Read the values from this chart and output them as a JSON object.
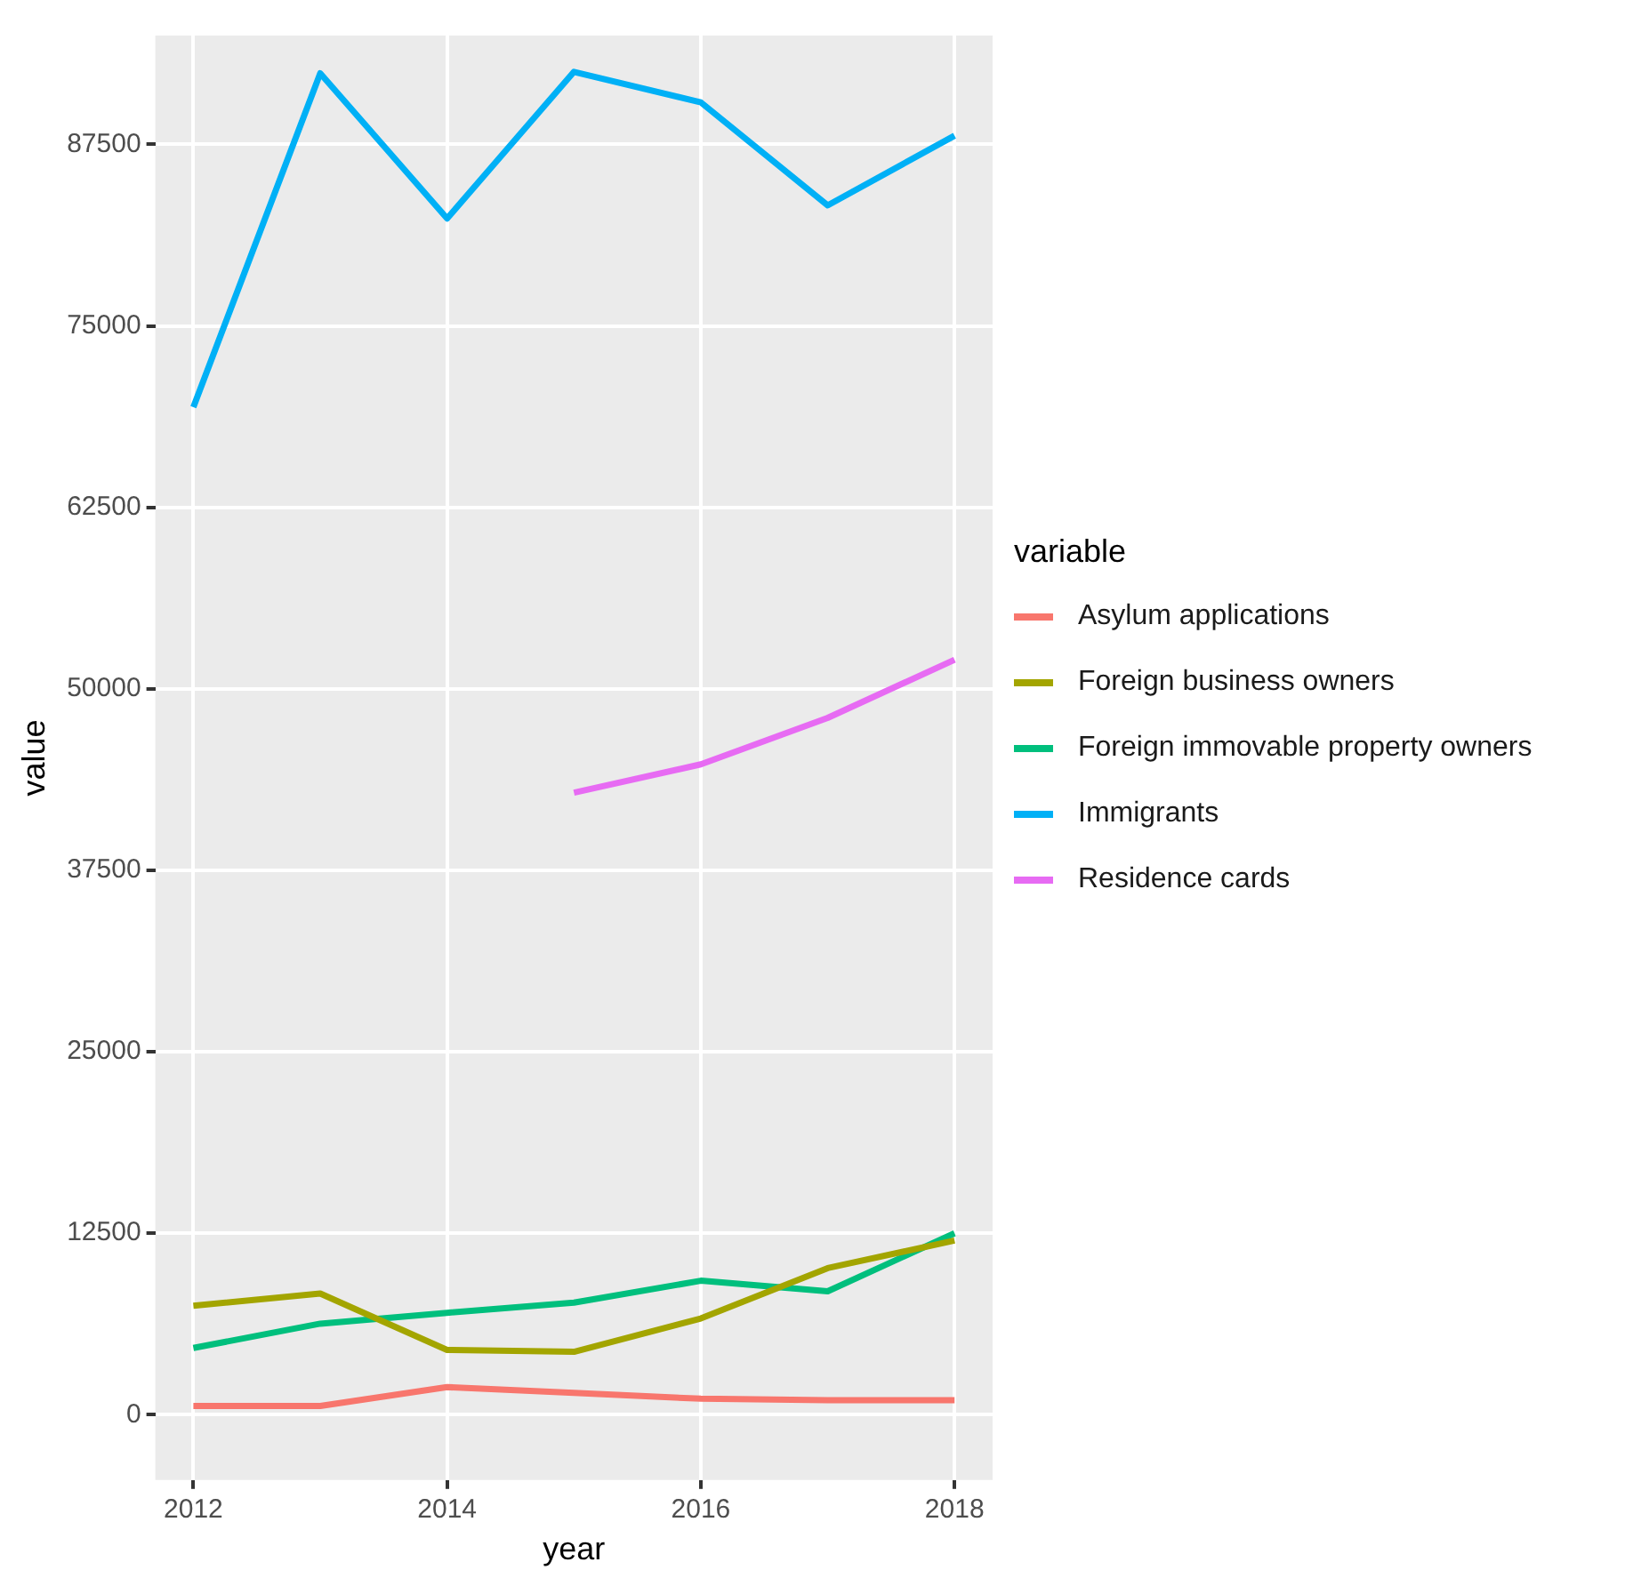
{
  "chart_data": {
    "type": "line",
    "xlabel": "year",
    "ylabel": "value",
    "legend_title": "variable",
    "legend": "right",
    "grid": true,
    "marker": "none",
    "line_style": "solid",
    "x": [
      2012,
      2013,
      2014,
      2015,
      2016,
      2017,
      2018
    ],
    "xlim": [
      2011.7,
      2018.3
    ],
    "xticks": [
      2012,
      2014,
      2016,
      2018
    ],
    "ylim": [
      -4500,
      95000
    ],
    "yticks": [
      0,
      12500,
      25000,
      37500,
      50000,
      62500,
      75000,
      87500
    ],
    "series": [
      {
        "name": "Asylum applications",
        "color": "#f8766d",
        "values": [
          600,
          600,
          1900,
          1500,
          1100,
          1000,
          1000
        ]
      },
      {
        "name": "Foreign business owners",
        "color": "#a3a500",
        "values": [
          7500,
          8350,
          4460,
          4330,
          6630,
          10100,
          12000
        ]
      },
      {
        "name": "Foreign immovable property owners",
        "color": "#00bf7d",
        "values": [
          4600,
          6270,
          7020,
          7720,
          9230,
          8500,
          12500
        ]
      },
      {
        "name": "Immigrants",
        "color": "#00b0f6",
        "values": [
          69400,
          92400,
          82400,
          92500,
          90400,
          83300,
          88100
        ]
      },
      {
        "name": "Residence cards",
        "color": "#e76bf3",
        "values": [
          null,
          null,
          null,
          42850,
          44800,
          48000,
          52000
        ]
      }
    ]
  }
}
